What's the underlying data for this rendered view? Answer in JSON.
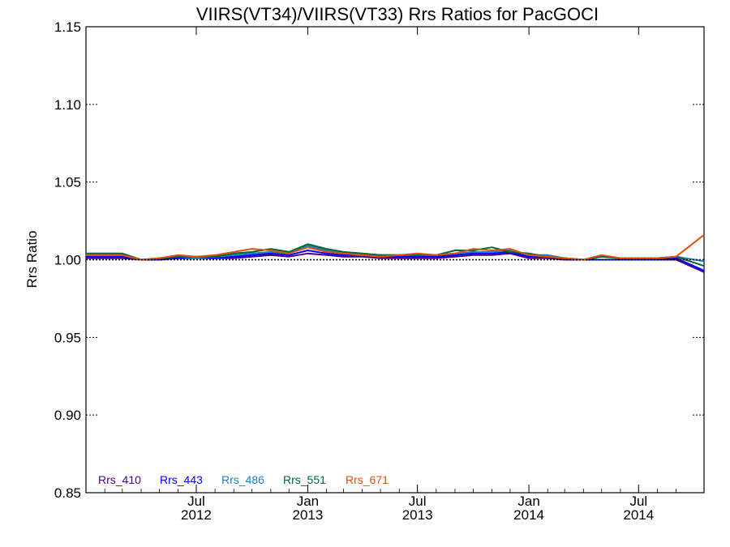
{
  "chart_data": {
    "type": "line",
    "title": "VIIRS(VT34)/VIIRS(VT33)  Rrs Ratios for PacGOCI",
    "ylabel": "Rrs Ratio",
    "xlabel": "",
    "ylim": [
      0.85,
      1.15
    ],
    "xlim": [
      "2012-01-01",
      "2014-10-17"
    ],
    "y_ticks": [
      {
        "value": 0.85,
        "label": "0.85"
      },
      {
        "value": 0.9,
        "label": "0.90"
      },
      {
        "value": 0.95,
        "label": "0.95"
      },
      {
        "value": 1.0,
        "label": "1.00"
      },
      {
        "value": 1.05,
        "label": "1.05"
      },
      {
        "value": 1.1,
        "label": "1.10"
      },
      {
        "value": 1.15,
        "label": "1.15"
      }
    ],
    "x_ticks": [
      {
        "date": "2012-07-01",
        "month": "Jul",
        "year": "2012"
      },
      {
        "date": "2013-01-01",
        "month": "Jan",
        "year": "2013"
      },
      {
        "date": "2013-07-01",
        "month": "Jul",
        "year": "2013"
      },
      {
        "date": "2014-01-01",
        "month": "Jan",
        "year": "2014"
      },
      {
        "date": "2014-07-01",
        "month": "Jul",
        "year": "2014"
      }
    ],
    "reference_line": 1.0,
    "grid": false,
    "legend_position": "bottom-left",
    "x": [
      "2012-01-01",
      "2012-02-01",
      "2012-03-01",
      "2012-04-01",
      "2012-05-01",
      "2012-06-01",
      "2012-07-01",
      "2012-08-01",
      "2012-09-01",
      "2012-10-01",
      "2012-11-01",
      "2012-12-01",
      "2013-01-01",
      "2013-02-01",
      "2013-03-01",
      "2013-04-01",
      "2013-05-01",
      "2013-06-01",
      "2013-07-01",
      "2013-08-01",
      "2013-09-01",
      "2013-10-01",
      "2013-11-01",
      "2013-12-01",
      "2014-01-01",
      "2014-02-01",
      "2014-03-01",
      "2014-04-01",
      "2014-05-01",
      "2014-06-01",
      "2014-07-01",
      "2014-08-01",
      "2014-09-01",
      "2014-10-17"
    ],
    "series": [
      {
        "name": "Rrs_410",
        "color": "#4b0082",
        "values": [
          1.001,
          1.001,
          1.001,
          1.0,
          1.0,
          1.001,
          1.001,
          1.001,
          1.001,
          1.002,
          1.003,
          1.002,
          1.004,
          1.003,
          1.002,
          1.002,
          1.001,
          1.001,
          1.001,
          1.001,
          1.002,
          1.003,
          1.003,
          1.004,
          1.001,
          1.001,
          1.0,
          1.0,
          1.0,
          1.0,
          1.0,
          1.0,
          1.0,
          0.992
        ]
      },
      {
        "name": "Rrs_443",
        "color": "#0000ff",
        "values": [
          1.002,
          1.002,
          1.002,
          1.0,
          1.0,
          1.001,
          1.001,
          1.001,
          1.002,
          1.003,
          1.004,
          1.003,
          1.006,
          1.004,
          1.003,
          1.003,
          1.002,
          1.002,
          1.002,
          1.002,
          1.003,
          1.004,
          1.004,
          1.005,
          1.002,
          1.002,
          1.001,
          1.0,
          1.0,
          1.0,
          1.0,
          1.0,
          1.001,
          0.993
        ]
      },
      {
        "name": "Rrs_486",
        "color": "#1e7fbf",
        "values": [
          1.003,
          1.003,
          1.003,
          1.0,
          1.001,
          1.002,
          1.001,
          1.002,
          1.003,
          1.004,
          1.005,
          1.004,
          1.009,
          1.006,
          1.004,
          1.003,
          1.003,
          1.003,
          1.003,
          1.003,
          1.004,
          1.005,
          1.005,
          1.006,
          1.003,
          1.003,
          1.001,
          1.0,
          1.002,
          1.001,
          1.001,
          1.001,
          1.002,
          0.999
        ]
      },
      {
        "name": "Rrs_551",
        "color": "#006837",
        "values": [
          1.004,
          1.004,
          1.004,
          1.0,
          1.001,
          1.002,
          1.002,
          1.002,
          1.004,
          1.005,
          1.007,
          1.005,
          1.01,
          1.007,
          1.005,
          1.004,
          1.003,
          1.003,
          1.003,
          1.003,
          1.006,
          1.006,
          1.008,
          1.005,
          1.004,
          1.002,
          1.001,
          1.0,
          1.002,
          1.001,
          1.001,
          1.001,
          1.002,
          0.996
        ]
      },
      {
        "name": "Rrs_671",
        "color": "#e0500a",
        "values": [
          1.003,
          1.003,
          1.003,
          1.0,
          1.001,
          1.003,
          1.002,
          1.003,
          1.005,
          1.007,
          1.006,
          1.004,
          1.008,
          1.005,
          1.004,
          1.003,
          1.002,
          1.003,
          1.004,
          1.003,
          1.004,
          1.007,
          1.006,
          1.007,
          1.003,
          1.002,
          1.001,
          1.0,
          1.003,
          1.001,
          1.001,
          1.001,
          1.002,
          1.016
        ]
      }
    ]
  }
}
